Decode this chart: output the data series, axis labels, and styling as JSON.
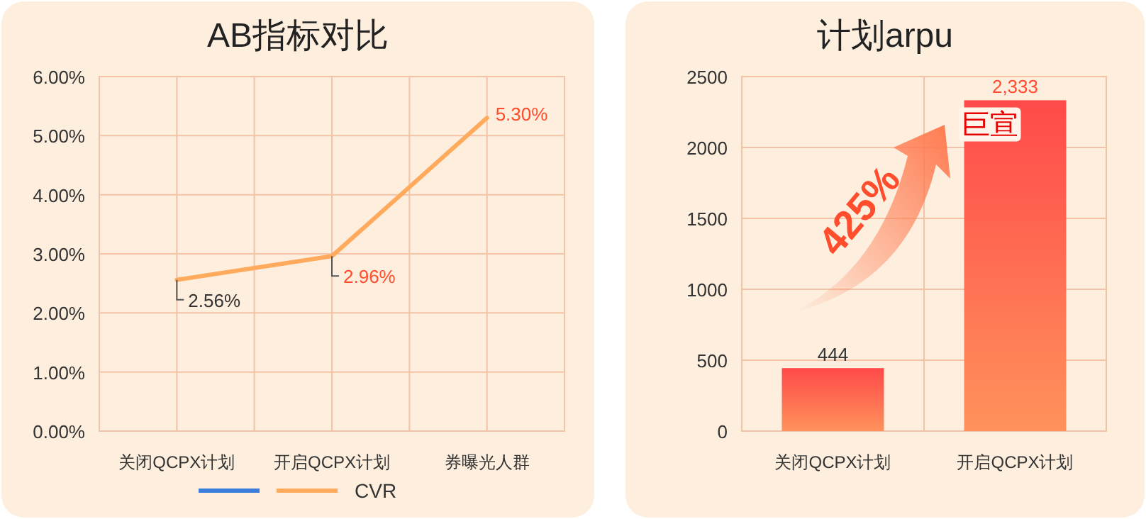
{
  "chart_data": [
    {
      "type": "line",
      "title": "AB指标对比",
      "categories": [
        "关闭QCPX计划",
        "开启QCPX计划",
        "券曝光人群"
      ],
      "series": [
        {
          "color": "#3b7ddd",
          "values": [
            null,
            null,
            null
          ]
        },
        {
          "name": "CVR",
          "color": "#ffaa5c",
          "values": [
            2.56,
            2.96,
            5.3
          ],
          "value_labels": [
            "2.56%",
            "2.96%",
            "5.30%"
          ]
        }
      ],
      "ylim": [
        0,
        6
      ],
      "yticks": [
        {
          "value": 0,
          "label": "0.00%"
        },
        {
          "value": 1,
          "label": "1.00%"
        },
        {
          "value": 2,
          "label": "2.00%"
        },
        {
          "value": 3,
          "label": "3.00%"
        },
        {
          "value": 4,
          "label": "4.00%"
        },
        {
          "value": 5,
          "label": "5.00%"
        },
        {
          "value": 6,
          "label": "6.00%"
        }
      ],
      "grid": true,
      "legend": "bottom",
      "marker": "none",
      "line_style": "solid"
    },
    {
      "type": "bar",
      "title": "计划arpu",
      "categories": [
        "关闭QCPX计划",
        "开启QCPX计划"
      ],
      "series": [
        {
          "color": "#ff4a4a",
          "values": [
            444,
            2333
          ],
          "value_labels": [
            "444",
            "2,333"
          ]
        }
      ],
      "ylim": [
        0,
        2500
      ],
      "yticks": [
        0,
        500,
        1000,
        1500,
        2000,
        2500
      ],
      "grid": "y",
      "annotations": [
        "425%",
        {
          "text": "巨宣",
          "x": "开启QCPX计划",
          "y": 2333
        }
      ]
    }
  ]
}
